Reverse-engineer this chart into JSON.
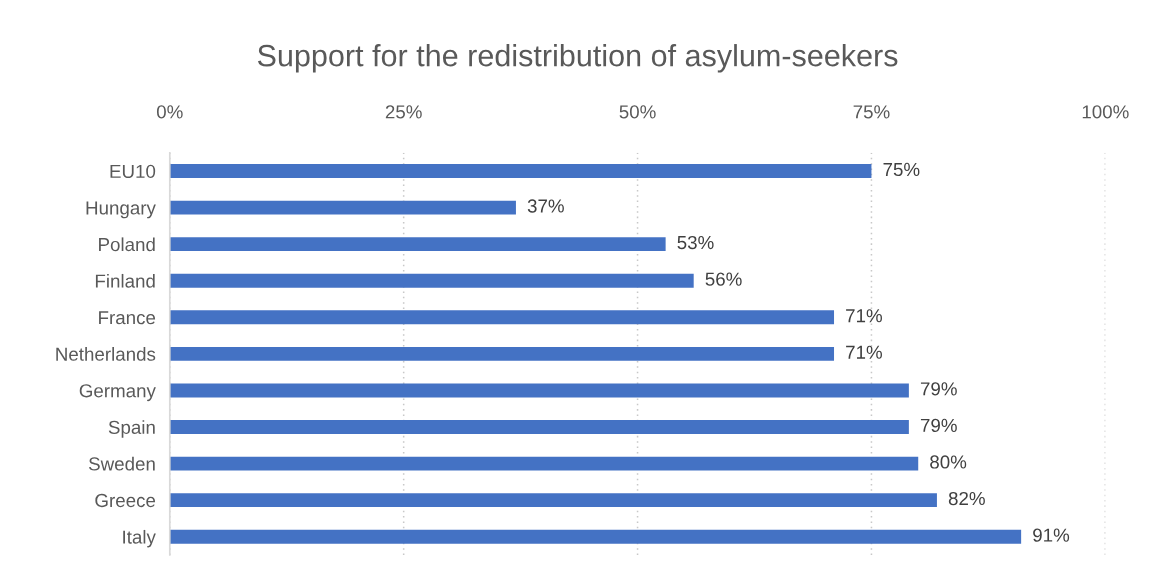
{
  "chart_data": {
    "type": "bar",
    "orientation": "horizontal",
    "title": "Support for the redistribution of asylum-seekers",
    "categories": [
      "EU10",
      "Hungary",
      "Poland",
      "Finland",
      "France",
      "Netherlands",
      "Germany",
      "Spain",
      "Sweden",
      "Greece",
      "Italy"
    ],
    "values": [
      75,
      37,
      53,
      56,
      71,
      71,
      79,
      79,
      80,
      82,
      91
    ],
    "value_labels": [
      "75%",
      "37%",
      "53%",
      "56%",
      "71%",
      "71%",
      "79%",
      "79%",
      "80%",
      "82%",
      "91%"
    ],
    "color": "#4472c4",
    "xlim": [
      0,
      100
    ],
    "xticks": [
      {
        "value": 0,
        "label": "0%"
      },
      {
        "value": 25,
        "label": "25%"
      },
      {
        "value": 50,
        "label": "50%"
      },
      {
        "value": 75,
        "label": "75%"
      },
      {
        "value": 100,
        "label": "100%"
      }
    ],
    "grid": "x",
    "legend": false
  }
}
